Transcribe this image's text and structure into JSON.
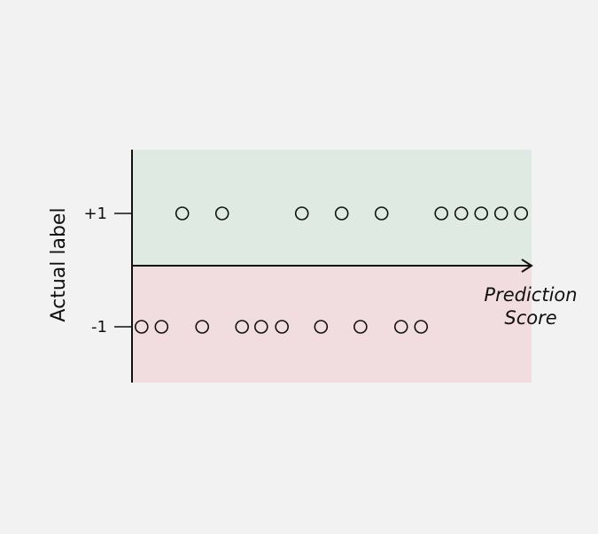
{
  "chart_data": {
    "type": "scatter",
    "title": "",
    "xlabel": [
      "Prediction",
      "Score"
    ],
    "ylabel": "Actual label",
    "y_ticks": [
      {
        "value": 1,
        "label": "+1"
      },
      {
        "value": -1,
        "label": "-1"
      }
    ],
    "xlim": [
      0,
      100
    ],
    "grid": false,
    "colors": {
      "positive_region": "#dfeae2",
      "negative_region": "#f1dddf",
      "points": "#111111",
      "axis": "#111111"
    },
    "series": [
      {
        "y": 1,
        "x": [
          12.6,
          22.6,
          42.6,
          52.6,
          62.6,
          77.6,
          82.6,
          87.6,
          92.6,
          97.6
        ]
      },
      {
        "y": -1,
        "x": [
          2.4,
          7.4,
          17.6,
          27.6,
          32.4,
          37.6,
          47.4,
          57.3,
          67.5,
          72.5
        ]
      }
    ]
  }
}
